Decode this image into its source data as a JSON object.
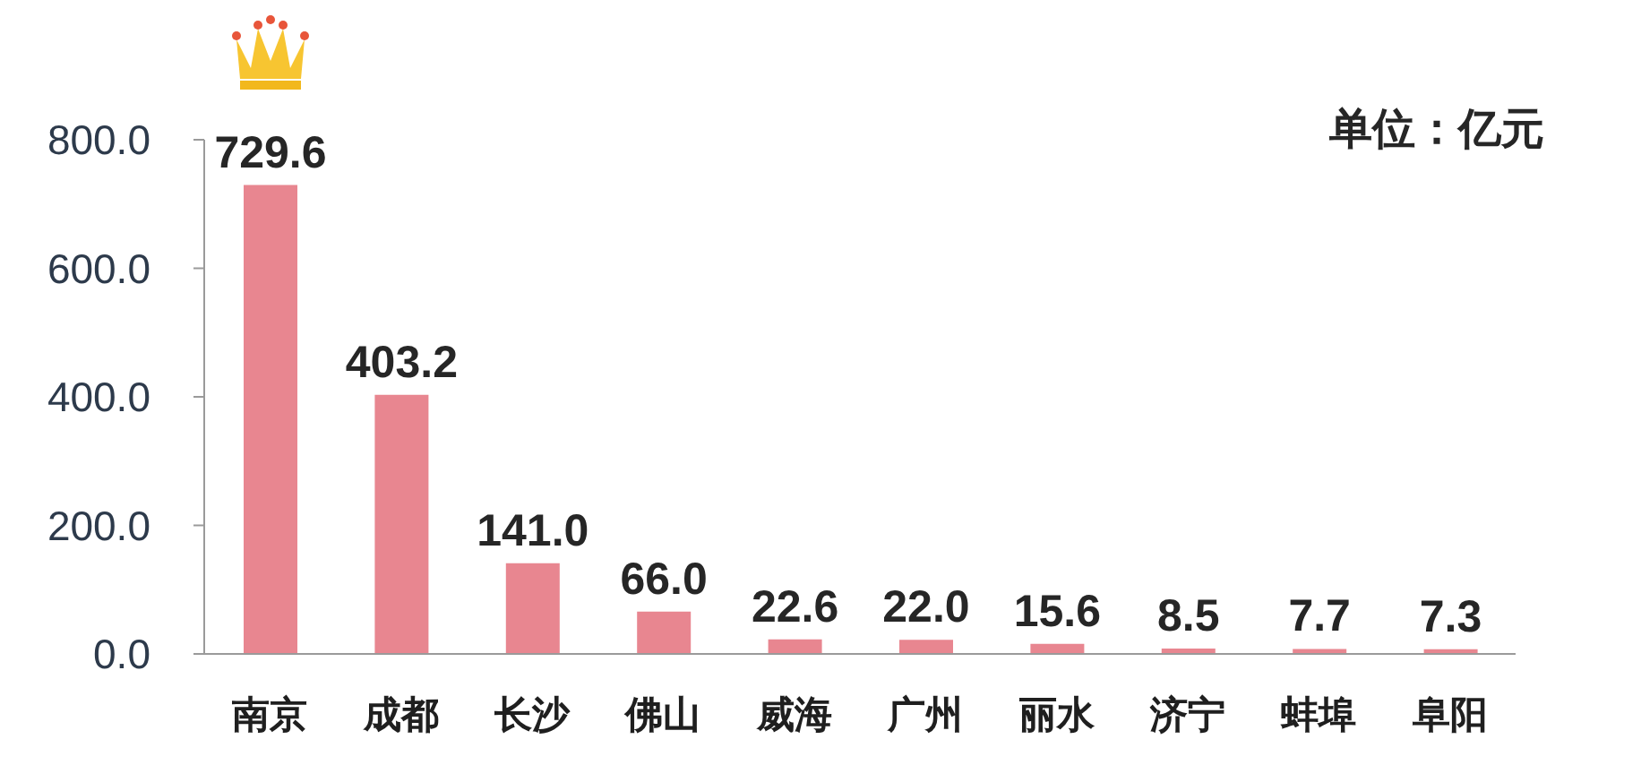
{
  "chart_data": {
    "type": "bar",
    "categories": [
      "南京",
      "成都",
      "长沙",
      "佛山",
      "威海",
      "广州",
      "丽水",
      "济宁",
      "蚌埠",
      "阜阳"
    ],
    "values": [
      729.6,
      403.2,
      141.0,
      66.0,
      22.6,
      22.0,
      15.6,
      8.5,
      7.7,
      7.3
    ],
    "value_labels": [
      "729.6",
      "403.2",
      "141.0",
      "66.0",
      "22.6",
      "22.0",
      "15.6",
      "8.5",
      "7.7",
      "7.3"
    ],
    "color": "#e88690",
    "ylim": [
      0,
      800
    ],
    "yticks": [
      {
        "value": 0,
        "label": "0.0"
      },
      {
        "value": 200,
        "label": "200.0"
      },
      {
        "value": 400,
        "label": "400.0"
      },
      {
        "value": 600,
        "label": "600.0"
      },
      {
        "value": 800,
        "label": "800.0"
      }
    ],
    "annotations": [
      "单位：亿元"
    ]
  }
}
